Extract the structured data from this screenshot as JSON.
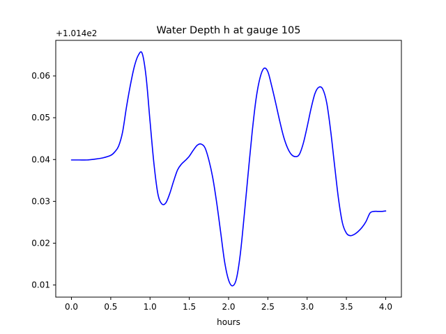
{
  "chart_data": {
    "type": "line",
    "title": "Water Depth h at gauge 105",
    "xlabel": "hours",
    "ylabel": "",
    "y_offset_label": "+1.014e2",
    "xlim": [
      -0.2,
      4.2
    ],
    "ylim": [
      0.0071,
      0.0685
    ],
    "x_ticks": [
      0.0,
      0.5,
      1.0,
      1.5,
      2.0,
      2.5,
      3.0,
      3.5,
      4.0
    ],
    "x_tick_labels": [
      "0.0",
      "0.5",
      "1.0",
      "1.5",
      "2.0",
      "2.5",
      "3.0",
      "3.5",
      "4.0"
    ],
    "y_ticks": [
      0.01,
      0.02,
      0.03,
      0.04,
      0.05,
      0.06
    ],
    "y_tick_labels": [
      "0.01",
      "0.02",
      "0.03",
      "0.04",
      "0.05",
      "0.06"
    ],
    "grid": false,
    "line_color": "#0000ff",
    "series": [
      {
        "x": [
          0.0,
          0.1,
          0.2,
          0.3,
          0.4,
          0.5,
          0.55,
          0.6,
          0.65,
          0.7,
          0.75,
          0.8,
          0.85,
          0.9,
          0.95,
          1.0,
          1.05,
          1.1,
          1.15,
          1.2,
          1.25,
          1.3,
          1.35,
          1.4,
          1.45,
          1.5,
          1.55,
          1.6,
          1.65,
          1.7,
          1.75,
          1.8,
          1.85,
          1.9,
          1.95,
          2.0,
          2.05,
          2.1,
          2.15,
          2.2,
          2.25,
          2.3,
          2.35,
          2.4,
          2.45,
          2.5,
          2.55,
          2.6,
          2.65,
          2.7,
          2.75,
          2.8,
          2.85,
          2.9,
          2.95,
          3.0,
          3.05,
          3.1,
          3.15,
          3.2,
          3.25,
          3.3,
          3.35,
          3.4,
          3.45,
          3.5,
          3.55,
          3.6,
          3.65,
          3.7,
          3.75,
          3.8,
          3.85,
          3.9,
          3.95,
          4.0
        ],
        "y": [
          0.0399,
          0.0399,
          0.0399,
          0.0401,
          0.0404,
          0.041,
          0.0418,
          0.0432,
          0.0465,
          0.0525,
          0.0578,
          0.0622,
          0.0649,
          0.0654,
          0.0598,
          0.0492,
          0.039,
          0.0318,
          0.0294,
          0.0296,
          0.0318,
          0.0348,
          0.0375,
          0.0389,
          0.0398,
          0.0408,
          0.0422,
          0.0434,
          0.0437,
          0.0428,
          0.0398,
          0.0355,
          0.0295,
          0.0225,
          0.0155,
          0.0112,
          0.0098,
          0.0115,
          0.0175,
          0.0268,
          0.0368,
          0.0465,
          0.0545,
          0.0595,
          0.0618,
          0.061,
          0.0575,
          0.0535,
          0.0493,
          0.0455,
          0.0428,
          0.0412,
          0.0407,
          0.0412,
          0.0438,
          0.0478,
          0.0522,
          0.0558,
          0.0573,
          0.0568,
          0.0535,
          0.0468,
          0.0385,
          0.0305,
          0.0248,
          0.0224,
          0.0218,
          0.0221,
          0.0228,
          0.0238,
          0.0252,
          0.0272,
          0.0276,
          0.0276,
          0.0276,
          0.0277
        ]
      }
    ]
  }
}
